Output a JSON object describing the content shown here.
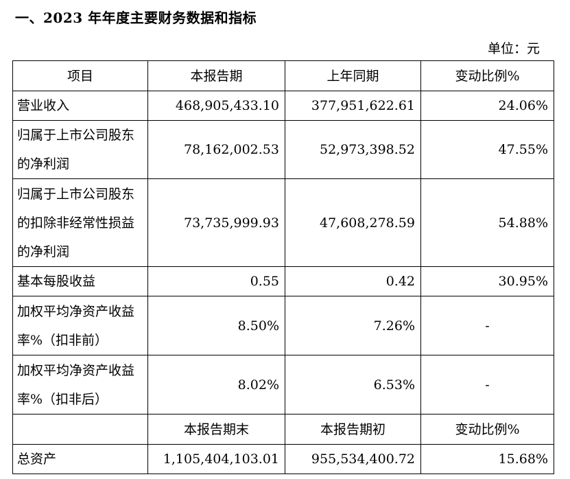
{
  "heading": "一、2023 年年度主要财务数据和指标",
  "unit": "单位：元",
  "header1": [
    "项目",
    "本报告期",
    "上年同期",
    "变动比例%"
  ],
  "rows1": [
    {
      "label": "营业收入",
      "current": "468,905,433.10",
      "prior": "377,951,622.61",
      "change": "24.06%"
    },
    {
      "label": "归属于上市公司股东的净利润",
      "current": "78,162,002.53",
      "prior": "52,973,398.52",
      "change": "47.55%"
    },
    {
      "label": "归属于上市公司股东的扣除非经常性损益的净利润",
      "current": "73,735,999.93",
      "prior": "47,608,278.59",
      "change": "54.88%"
    },
    {
      "label": "基本每股收益",
      "current": "0.55",
      "prior": "0.42",
      "change": "30.95%"
    },
    {
      "label": "加权平均净资产收益率%（扣非前）",
      "current": "8.50%",
      "prior": "7.26%",
      "change": "-"
    },
    {
      "label": "加权平均净资产收益率%（扣非后）",
      "current": "8.02%",
      "prior": "6.53%",
      "change": "-"
    }
  ],
  "header2": [
    "",
    "本报告期末",
    "本报告期初",
    "变动比例%"
  ],
  "rows2": [
    {
      "label": "总资产",
      "current": "1,105,404,103.01",
      "prior": "955,534,400.72",
      "change": "15.68%"
    }
  ]
}
